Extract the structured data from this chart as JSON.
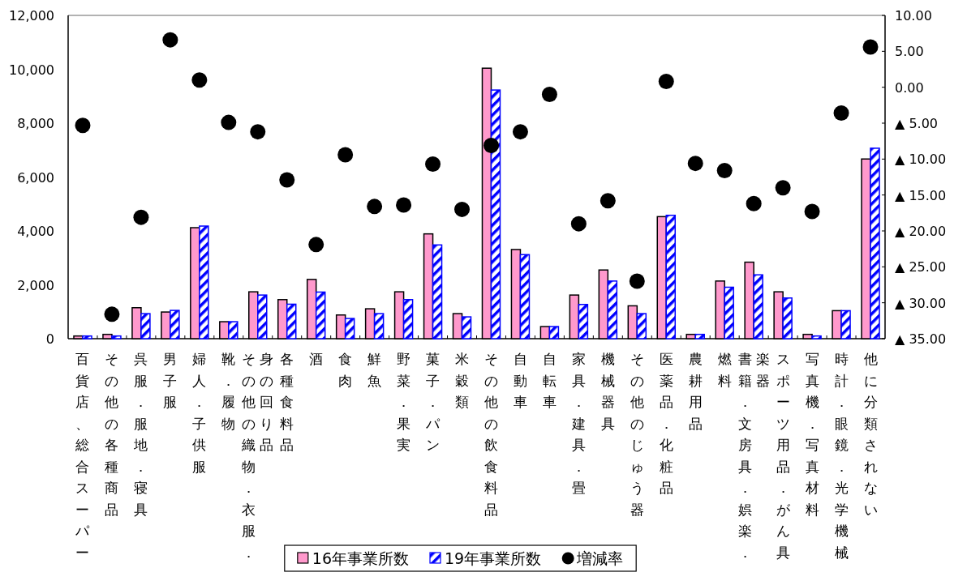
{
  "chart_data": {
    "type": "bar",
    "categories": [
      "百貨店、総合スーパー",
      "その他の各種商品",
      "呉服．服地．寝具",
      "男子服",
      "婦人．子供服",
      "靴．履物",
      "その他の織物．衣服．身の回り品",
      "各種食料品",
      "酒",
      "食肉",
      "鮮魚",
      "野菜．果実",
      "菓子．パン",
      "米穀類",
      "その他の飲食料品",
      "自動車",
      "自転車",
      "家具．建具．畳",
      "機械器具",
      "その他のじゅう器",
      "医薬品．化粧品",
      "農耕用品",
      "燃料",
      "書籍．文房具．娯楽．楽器",
      "スポーツ用品．がん具",
      "写真機．写真材料",
      "時計．眼鏡．光学機械",
      "他に分類されない"
    ],
    "series": [
      {
        "name": "16年事業所数",
        "color": "#ff99cc",
        "values": [
          100,
          160,
          1150,
          990,
          4120,
          630,
          1740,
          1450,
          2200,
          880,
          1110,
          1740,
          3890,
          930,
          10040,
          3310,
          450,
          1620,
          2550,
          1220,
          4530,
          160,
          2140,
          2840,
          1740,
          160,
          1040,
          6670
        ]
      },
      {
        "name": "19年事業所数",
        "color": "#0000ff",
        "values": [
          100,
          100,
          930,
          1050,
          4180,
          630,
          1620,
          1280,
          1730,
          750,
          930,
          1450,
          3480,
          810,
          9230,
          3120,
          450,
          1270,
          2140,
          930,
          4580,
          160,
          1910,
          2370,
          1510,
          100,
          1040,
          7070
        ]
      },
      {
        "name": "増減率",
        "type": "scatter",
        "axis": "y2",
        "color": "#000000",
        "values": [
          -5.3,
          -31.6,
          -18.1,
          6.6,
          1.0,
          -4.9,
          -6.2,
          -12.9,
          -21.9,
          -9.4,
          -16.6,
          -16.4,
          -10.7,
          -17.0,
          -8.1,
          -6.2,
          -1.0,
          -19.0,
          -15.8,
          -27.0,
          0.8,
          -10.6,
          -11.6,
          -16.2,
          -14.0,
          -17.3,
          -3.6,
          5.6
        ]
      }
    ],
    "ylim": [
      0,
      12000
    ],
    "yticks": [
      0,
      {
        "value": 2000,
        "label": "2,000"
      },
      {
        "value": 4000,
        "label": "4,000"
      },
      {
        "value": 6000,
        "label": "6,000"
      },
      {
        "value": 8000,
        "label": "8,000"
      },
      {
        "value": 10000,
        "label": "10,000"
      },
      {
        "value": 12000,
        "label": "12,000"
      }
    ],
    "y2lim": [
      -35,
      10
    ],
    "y2ticks": [
      {
        "value": 10,
        "label": "10.00"
      },
      {
        "value": 5,
        "label": "5.00"
      },
      {
        "value": 0,
        "label": "0.00"
      },
      {
        "value": -5,
        "label": "▲ 5.00"
      },
      {
        "value": -10,
        "label": "▲ 10.00"
      },
      {
        "value": -15,
        "label": "▲ 15.00"
      },
      {
        "value": -20,
        "label": "▲ 20.00"
      },
      {
        "value": -25,
        "label": "▲ 25.00"
      },
      {
        "value": -30,
        "label": "▲ 30.00"
      },
      {
        "value": -35,
        "label": "▲ 35.00"
      }
    ],
    "legend": "bottom",
    "marker": "circle"
  }
}
